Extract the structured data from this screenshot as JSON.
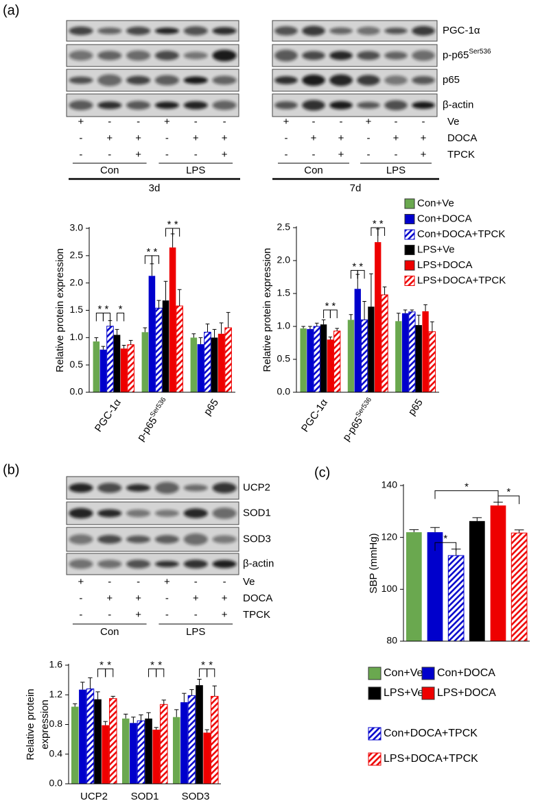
{
  "panel_labels": [
    "(a)",
    "(b)",
    "(c)"
  ],
  "blot_a_rows": [
    "PGC-1α",
    {
      "base": "p-p65",
      "sup": "Ser536"
    },
    "p65",
    "β-actin"
  ],
  "treatments_a": [
    "Ve",
    "DOCA",
    "TPCK"
  ],
  "blots_a": [
    {
      "time": "3d",
      "groups": [
        "Con",
        "LPS"
      ],
      "signs": [
        [
          "+",
          "-",
          "-",
          "+",
          "-",
          "-"
        ],
        [
          "-",
          "+",
          "+",
          "-",
          "+",
          "+"
        ],
        [
          "-",
          "-",
          "+",
          "-",
          "-",
          "+"
        ]
      ]
    },
    {
      "time": "7d",
      "groups": [
        "Con",
        "LPS"
      ],
      "signs": [
        [
          "+",
          "-",
          "-",
          "+",
          "-",
          "-"
        ],
        [
          "-",
          "+",
          "+",
          "-",
          "+",
          "+"
        ],
        [
          "-",
          "-",
          "+",
          "-",
          "-",
          "+"
        ]
      ]
    }
  ],
  "blot_b": {
    "rows": [
      "UCP2",
      "SOD1",
      "SOD3",
      "β-actin"
    ],
    "treatments": [
      "Ve",
      "DOCA",
      "TPCK"
    ],
    "groups": [
      "Con",
      "LPS"
    ],
    "signs": [
      [
        "+",
        "-",
        "-",
        "+",
        "-",
        "-"
      ],
      [
        "-",
        "+",
        "+",
        "-",
        "+",
        "+"
      ],
      [
        "-",
        "-",
        "+",
        "-",
        "-",
        "+"
      ]
    ]
  },
  "chart_data": [
    {
      "type": "bar",
      "ylabel": "Relative protein  expression",
      "categories": [
        "PGC-1α",
        {
          "base": "p-p65",
          "sup": "Ser536"
        },
        "p65"
      ],
      "ylim": [
        0,
        3
      ],
      "yticks": [
        {
          "value": 0,
          "label": "0.0"
        },
        0.5,
        {
          "value": 1,
          "label": "1.0"
        },
        1.5,
        {
          "value": 2,
          "label": "2.0"
        },
        2.5,
        {
          "value": 3,
          "label": "3.0"
        }
      ],
      "series": [
        {
          "color": "#6aa84f",
          "hatch": false,
          "values": [
            0.93,
            1.1,
            1.0
          ],
          "errors": [
            0.07,
            0.08,
            0.07
          ]
        },
        {
          "color": "#0000cc",
          "hatch": false,
          "values": [
            0.78,
            2.13,
            0.88
          ],
          "errors": [
            0.06,
            0.22,
            0.12
          ]
        },
        {
          "color": "#0000cc",
          "hatch": true,
          "values": [
            1.21,
            1.54,
            1.1
          ],
          "errors": [
            0.1,
            0.14,
            0.15
          ]
        },
        {
          "color": "#000000",
          "hatch": false,
          "values": [
            1.05,
            1.68,
            1.0
          ],
          "errors": [
            0.1,
            0.35,
            0.15
          ]
        },
        {
          "color": "#ee0000",
          "hatch": false,
          "values": [
            0.8,
            2.65,
            1.07
          ],
          "errors": [
            0.06,
            0.25,
            0.2
          ]
        },
        {
          "color": "#ee0000",
          "hatch": true,
          "values": [
            0.87,
            1.58,
            1.18
          ],
          "errors": [
            0.08,
            0.3,
            0.28
          ]
        }
      ],
      "brackets": [
        {
          "category": 0,
          "from": 0,
          "to": 1,
          "y": 1.45,
          "label": "*"
        },
        {
          "category": 0,
          "from": 1,
          "to": 2,
          "y": 1.45,
          "label": "*"
        },
        {
          "category": 0,
          "from": 3,
          "to": 4,
          "y": 1.45,
          "label": "*"
        },
        {
          "category": 1,
          "from": 0,
          "to": 1,
          "y": 2.5,
          "label": "*"
        },
        {
          "category": 1,
          "from": 1,
          "to": 2,
          "y": 2.5,
          "label": "*"
        },
        {
          "category": 1,
          "from": 3,
          "to": 4,
          "y": 3.0,
          "label": "*"
        },
        {
          "category": 1,
          "from": 4,
          "to": 5,
          "y": 3.0,
          "label": "*"
        }
      ]
    },
    {
      "type": "bar",
      "ylabel": "Relative protein  expression",
      "categories": [
        "PGC-1α",
        {
          "base": "p-p65",
          "sup": "Ser536"
        },
        "p65"
      ],
      "ylim": [
        0,
        2.5
      ],
      "yticks": [
        {
          "value": 0,
          "label": "0.0"
        },
        0.5,
        {
          "value": 1,
          "label": "1.0"
        },
        1.5,
        {
          "value": 2,
          "label": "2.0"
        },
        2.5
      ],
      "series": [
        {
          "name": "Con+Ve",
          "color": "#6aa84f",
          "hatch": false,
          "values": [
            0.97,
            1.1,
            1.08
          ],
          "errors": [
            0.03,
            0.08,
            0.12
          ]
        },
        {
          "name": "Con+DOCA",
          "color": "#0000cc",
          "hatch": false,
          "values": [
            0.96,
            1.57,
            1.2
          ],
          "errors": [
            0.04,
            0.22,
            0.05
          ]
        },
        {
          "name": "Con+DOCA+TPCK",
          "color": "#0000cc",
          "hatch": true,
          "values": [
            1.0,
            1.1,
            1.22
          ],
          "errors": [
            0.05,
            0.28,
            0.03
          ]
        },
        {
          "name": "LPS+Ve",
          "color": "#000000",
          "hatch": false,
          "values": [
            1.03,
            1.3,
            1.02
          ],
          "errors": [
            0.07,
            0.5,
            0.15
          ]
        },
        {
          "name": "LPS+DOCA",
          "color": "#ee0000",
          "hatch": false,
          "values": [
            0.8,
            2.28,
            1.23
          ],
          "errors": [
            0.04,
            0.2,
            0.1
          ]
        },
        {
          "name": "LPS+DOCA+TPCK",
          "color": "#ee0000",
          "hatch": true,
          "values": [
            0.93,
            1.48,
            0.92
          ],
          "errors": [
            0.04,
            0.12,
            0.15
          ]
        }
      ],
      "legend": "top-right",
      "brackets": [
        {
          "category": 0,
          "from": 3,
          "to": 4,
          "y": 1.25,
          "label": "*"
        },
        {
          "category": 0,
          "from": 4,
          "to": 5,
          "y": 1.25,
          "label": "*"
        },
        {
          "category": 1,
          "from": 0,
          "to": 1,
          "y": 1.85,
          "label": "*"
        },
        {
          "category": 1,
          "from": 1,
          "to": 2,
          "y": 1.85,
          "label": "*"
        },
        {
          "category": 1,
          "from": 3,
          "to": 4,
          "y": 2.5,
          "label": "*"
        },
        {
          "category": 1,
          "from": 4,
          "to": 5,
          "y": 2.5,
          "label": "*"
        }
      ]
    },
    {
      "type": "bar",
      "ylabel": [
        "Relative protein",
        "expression"
      ],
      "categories": [
        "UCP2",
        "SOD1",
        "SOD3"
      ],
      "ylim": [
        0,
        1.6
      ],
      "yticks": [
        {
          "value": 0,
          "label": "0.0"
        },
        0.4,
        0.8,
        1.2,
        1.6
      ],
      "series": [
        {
          "color": "#6aa84f",
          "hatch": false,
          "values": [
            1.04,
            0.88,
            0.9
          ],
          "errors": [
            0.04,
            0.06,
            0.1
          ]
        },
        {
          "color": "#0000cc",
          "hatch": false,
          "values": [
            1.27,
            0.82,
            1.1
          ],
          "errors": [
            0.1,
            0.08,
            0.12
          ]
        },
        {
          "color": "#0000cc",
          "hatch": true,
          "values": [
            1.28,
            0.85,
            1.19
          ],
          "errors": [
            0.15,
            0.08,
            0.08
          ]
        },
        {
          "color": "#000000",
          "hatch": false,
          "values": [
            1.14,
            0.88,
            1.33
          ],
          "errors": [
            0.1,
            0.08,
            0.08
          ]
        },
        {
          "color": "#ee0000",
          "hatch": false,
          "values": [
            0.79,
            0.73,
            0.69
          ],
          "errors": [
            0.05,
            0.03,
            0.04
          ]
        },
        {
          "color": "#ee0000",
          "hatch": true,
          "values": [
            1.15,
            1.07,
            1.18
          ],
          "errors": [
            0.03,
            0.06,
            0.14
          ]
        }
      ],
      "brackets": [
        {
          "category": 0,
          "from": 3,
          "to": 4,
          "y": 1.55,
          "label": "*"
        },
        {
          "category": 0,
          "from": 4,
          "to": 5,
          "y": 1.55,
          "label": "*"
        },
        {
          "category": 1,
          "from": 3,
          "to": 4,
          "y": 1.55,
          "label": "*"
        },
        {
          "category": 1,
          "from": 4,
          "to": 5,
          "y": 1.55,
          "label": "*"
        },
        {
          "category": 2,
          "from": 3,
          "to": 4,
          "y": 1.55,
          "label": "*"
        },
        {
          "category": 2,
          "from": 4,
          "to": 5,
          "y": 1.55,
          "label": "*"
        }
      ]
    },
    {
      "type": "bar",
      "ylabel": "SBP (mmHg)",
      "categories": [
        null
      ],
      "ylim": [
        80,
        140
      ],
      "yticks": [
        80,
        100,
        120,
        140
      ],
      "series": [
        {
          "name": "Con+Ve",
          "color": "#6aa84f",
          "hatch": false,
          "values": [
            122
          ],
          "errors": [
            1
          ]
        },
        {
          "name": "Con+DOCA",
          "color": "#0000cc",
          "hatch": false,
          "values": [
            122
          ],
          "errors": [
            1.8
          ]
        },
        {
          "name": "Con+DOCA+TPCK",
          "color": "#0000cc",
          "hatch": true,
          "values": [
            113
          ],
          "errors": [
            2.5
          ]
        },
        {
          "name": "LPS+Ve",
          "color": "#000000",
          "hatch": false,
          "values": [
            126.3
          ],
          "errors": [
            1.3
          ]
        },
        {
          "name": "LPS+DOCA",
          "color": "#ee0000",
          "hatch": false,
          "values": [
            132.3
          ],
          "errors": [
            1.3
          ]
        },
        {
          "name": "LPS+DOCA+TPCK",
          "color": "#ee0000",
          "hatch": true,
          "values": [
            121.7
          ],
          "errors": [
            1.2
          ]
        }
      ],
      "legend": "below",
      "brackets": [
        {
          "category": 0,
          "from": 1,
          "to": 2,
          "y": 118,
          "label": "*"
        },
        {
          "category": 0,
          "from": 1,
          "to": 4,
          "y": 138,
          "label": "*"
        },
        {
          "category": 0,
          "from": 4,
          "to": 5,
          "y": 136,
          "label": "*"
        }
      ]
    }
  ]
}
